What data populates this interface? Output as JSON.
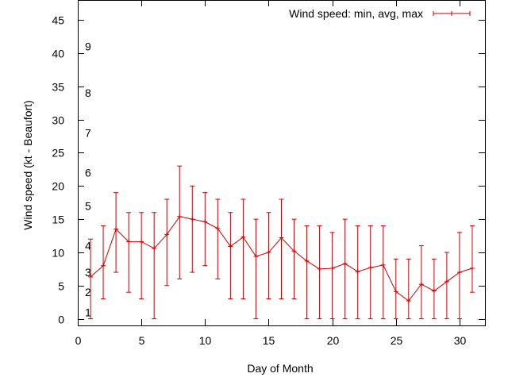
{
  "chart_data": {
    "type": "line",
    "title": "",
    "xlabel": "Day of Month",
    "ylabel": "Wind speed (kt - Beaufort)",
    "xlim": [
      0,
      32
    ],
    "ylim": [
      -1,
      48
    ],
    "x_ticks": [
      0,
      5,
      10,
      15,
      20,
      25,
      30
    ],
    "y_ticks": [
      0,
      5,
      10,
      15,
      20,
      25,
      30,
      35,
      40,
      45
    ],
    "grid": false,
    "legend": "top-right",
    "series": [
      {
        "name": "Wind speed: min, avg, max",
        "color": "#cc0000",
        "points": [
          {
            "x": 1,
            "avg": 6.3,
            "min": 0,
            "max": 12
          },
          {
            "x": 2,
            "avg": 8.0,
            "min": 3,
            "max": 14
          },
          {
            "x": 3,
            "avg": 13.5,
            "min": 7,
            "max": 19
          },
          {
            "x": 4,
            "avg": 11.6,
            "min": 4,
            "max": 16
          },
          {
            "x": 5,
            "avg": 11.6,
            "min": 3,
            "max": 16
          },
          {
            "x": 6,
            "avg": 10.6,
            "min": 0,
            "max": 16
          },
          {
            "x": 7,
            "avg": 12.7,
            "min": 5,
            "max": 18
          },
          {
            "x": 8,
            "avg": 15.4,
            "min": 6,
            "max": 23
          },
          {
            "x": 9,
            "avg": 15.0,
            "min": 7,
            "max": 20
          },
          {
            "x": 10,
            "avg": 14.6,
            "min": 8,
            "max": 19
          },
          {
            "x": 11,
            "avg": 13.6,
            "min": 6,
            "max": 18
          },
          {
            "x": 12,
            "avg": 10.9,
            "min": 3,
            "max": 16
          },
          {
            "x": 13,
            "avg": 12.3,
            "min": 3,
            "max": 18
          },
          {
            "x": 14,
            "avg": 9.4,
            "min": 0,
            "max": 15
          },
          {
            "x": 15,
            "avg": 10.0,
            "min": 3,
            "max": 16
          },
          {
            "x": 16,
            "avg": 12.2,
            "min": 3,
            "max": 18
          },
          {
            "x": 17,
            "avg": 10.2,
            "min": 3,
            "max": 15
          },
          {
            "x": 18,
            "avg": 8.7,
            "min": 0,
            "max": 14
          },
          {
            "x": 19,
            "avg": 7.5,
            "min": 0,
            "max": 14
          },
          {
            "x": 20,
            "avg": 7.6,
            "min": 0,
            "max": 13
          },
          {
            "x": 21,
            "avg": 8.3,
            "min": 0,
            "max": 15
          },
          {
            "x": 22,
            "avg": 7.1,
            "min": 0,
            "max": 14
          },
          {
            "x": 23,
            "avg": 7.7,
            "min": 0,
            "max": 14
          },
          {
            "x": 24,
            "avg": 8.1,
            "min": 0,
            "max": 14
          },
          {
            "x": 25,
            "avg": 4.1,
            "min": 0,
            "max": 9
          },
          {
            "x": 26,
            "avg": 2.7,
            "min": 0,
            "max": 9
          },
          {
            "x": 27,
            "avg": 5.2,
            "min": 0,
            "max": 11
          },
          {
            "x": 28,
            "avg": 4.2,
            "min": 0,
            "max": 9
          },
          {
            "x": 29,
            "avg": 5.6,
            "min": 0,
            "max": 10
          },
          {
            "x": 30,
            "avg": 7.0,
            "min": 0,
            "max": 13
          },
          {
            "x": 31,
            "avg": 7.6,
            "min": 4,
            "max": 14
          }
        ]
      }
    ],
    "beaufort_labels": [
      {
        "label": "1",
        "y": 1
      },
      {
        "label": "2",
        "y": 4
      },
      {
        "label": "3",
        "y": 7
      },
      {
        "label": "4",
        "y": 11
      },
      {
        "label": "5",
        "y": 17
      },
      {
        "label": "6",
        "y": 22
      },
      {
        "label": "7",
        "y": 28
      },
      {
        "label": "8",
        "y": 34
      },
      {
        "label": "9",
        "y": 41
      }
    ]
  }
}
